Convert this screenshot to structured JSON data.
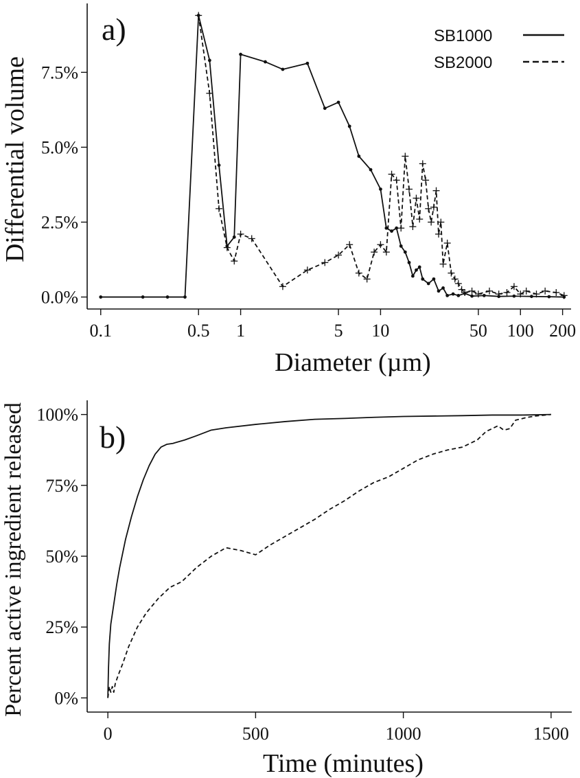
{
  "chart_data": [
    {
      "type": "line",
      "panel_label": "a)",
      "xlabel": "Diameter (µm)",
      "ylabel": "Differential volume",
      "x_scale": "log",
      "xlim": [
        0.08,
        230
      ],
      "ylim": [
        -0.4,
        9.8
      ],
      "x_ticks": [
        0.1,
        0.5,
        1,
        5,
        10,
        50,
        100,
        200
      ],
      "x_tick_labels": [
        "0.1",
        "0.5",
        "1",
        "5",
        "10",
        "50",
        "100",
        "200"
      ],
      "y_ticks": [
        0,
        2.5,
        5,
        7.5
      ],
      "y_tick_labels": [
        "0.0%",
        "2.5%",
        "5.0%",
        "7.5%"
      ],
      "legend_placement": "top-right",
      "grid": false,
      "series": [
        {
          "name": "SB1000",
          "line_style": "solid",
          "marker": "dot",
          "points": [
            [
              0.1,
              0
            ],
            [
              0.2,
              0
            ],
            [
              0.3,
              0
            ],
            [
              0.4,
              0
            ],
            [
              0.5,
              9.4
            ],
            [
              0.6,
              7.9
            ],
            [
              0.7,
              4.4
            ],
            [
              0.8,
              1.7
            ],
            [
              0.9,
              2.0
            ],
            [
              1.0,
              8.1
            ],
            [
              1.5,
              7.85
            ],
            [
              2.0,
              7.6
            ],
            [
              3.0,
              7.8
            ],
            [
              4.0,
              6.3
            ],
            [
              5.0,
              6.5
            ],
            [
              6.0,
              5.7
            ],
            [
              7.0,
              4.7
            ],
            [
              8.5,
              4.25
            ],
            [
              10.0,
              3.6
            ],
            [
              11,
              2.3
            ],
            [
              12,
              2.2
            ],
            [
              13,
              2.3
            ],
            [
              14,
              1.7
            ],
            [
              15,
              1.5
            ],
            [
              16,
              1.15
            ],
            [
              17,
              0.7
            ],
            [
              18,
              0.9
            ],
            [
              19,
              1.0
            ],
            [
              20,
              0.6
            ],
            [
              22,
              0.45
            ],
            [
              24,
              0.6
            ],
            [
              26,
              0.2
            ],
            [
              28,
              0.3
            ],
            [
              30,
              0.05
            ],
            [
              33,
              0.1
            ],
            [
              36,
              0.05
            ],
            [
              40,
              0.12
            ],
            [
              45,
              0.03
            ],
            [
              55,
              0.05
            ],
            [
              70,
              0.02
            ],
            [
              90,
              0.03
            ],
            [
              120,
              0.02
            ],
            [
              160,
              0.01
            ],
            [
              205,
              0
            ]
          ]
        },
        {
          "name": "SB2000",
          "line_style": "dashed",
          "marker": "cross",
          "points": [
            [
              0.5,
              9.4
            ],
            [
              0.6,
              6.8
            ],
            [
              0.7,
              2.95
            ],
            [
              0.8,
              1.65
            ],
            [
              0.9,
              1.2
            ],
            [
              1.0,
              2.1
            ],
            [
              1.2,
              1.95
            ],
            [
              2.0,
              0.35
            ],
            [
              3.0,
              0.9
            ],
            [
              4.0,
              1.15
            ],
            [
              5.0,
              1.4
            ],
            [
              6.0,
              1.75
            ],
            [
              7.0,
              0.8
            ],
            [
              8.0,
              0.6
            ],
            [
              9.0,
              1.5
            ],
            [
              10.0,
              1.75
            ],
            [
              11,
              1.5
            ],
            [
              12,
              4.1
            ],
            [
              13,
              3.9
            ],
            [
              14,
              2.3
            ],
            [
              15,
              4.7
            ],
            [
              16,
              3.6
            ],
            [
              17,
              2.35
            ],
            [
              18,
              3.3
            ],
            [
              19,
              2.6
            ],
            [
              20,
              4.45
            ],
            [
              21,
              3.9
            ],
            [
              22,
              2.95
            ],
            [
              23,
              2.5
            ],
            [
              24,
              3.0
            ],
            [
              25,
              3.55
            ],
            [
              26,
              2.1
            ],
            [
              27,
              2.5
            ],
            [
              28,
              1.1
            ],
            [
              30,
              1.8
            ],
            [
              32,
              0.8
            ],
            [
              34,
              0.6
            ],
            [
              36,
              0.45
            ],
            [
              38,
              0.25
            ],
            [
              40,
              0.15
            ],
            [
              45,
              0.2
            ],
            [
              50,
              0.1
            ],
            [
              60,
              0.2
            ],
            [
              70,
              0.1
            ],
            [
              80,
              0.15
            ],
            [
              90,
              0.35
            ],
            [
              100,
              0.1
            ],
            [
              110,
              0.2
            ],
            [
              130,
              0.1
            ],
            [
              150,
              0.2
            ],
            [
              180,
              0.15
            ],
            [
              205,
              0.05
            ]
          ]
        }
      ]
    },
    {
      "type": "line",
      "panel_label": "b)",
      "xlabel": "Time (minutes)",
      "ylabel": "Percent active ingredient  released",
      "xlim": [
        -70,
        1570
      ],
      "ylim": [
        -5,
        105
      ],
      "x_ticks": [
        0,
        500,
        1000,
        1500
      ],
      "x_tick_labels": [
        "0",
        "500",
        "1000",
        "1500"
      ],
      "y_ticks": [
        0,
        25,
        50,
        75,
        100
      ],
      "y_tick_labels": [
        "0%",
        "25%",
        "50%",
        "75%",
        "100%"
      ],
      "grid": false,
      "series": [
        {
          "name": "SB1000",
          "line_style": "solid",
          "points": [
            [
              0,
              0
            ],
            [
              2,
              10
            ],
            [
              5,
              19
            ],
            [
              10,
              26
            ],
            [
              20,
              33
            ],
            [
              30,
              40
            ],
            [
              40,
              46
            ],
            [
              60,
              56
            ],
            [
              80,
              64
            ],
            [
              100,
              71
            ],
            [
              120,
              77
            ],
            [
              140,
              82
            ],
            [
              160,
              86
            ],
            [
              180,
              88.5
            ],
            [
              200,
              89.5
            ],
            [
              220,
              89.8
            ],
            [
              260,
              91
            ],
            [
              300,
              92.5
            ],
            [
              350,
              94.5
            ],
            [
              400,
              95.3
            ],
            [
              500,
              96.5
            ],
            [
              600,
              97.5
            ],
            [
              700,
              98.3
            ],
            [
              800,
              98.6
            ],
            [
              900,
              99
            ],
            [
              1000,
              99.3
            ],
            [
              1200,
              99.6
            ],
            [
              1300,
              99.8
            ],
            [
              1400,
              99.8
            ],
            [
              1500,
              100
            ]
          ]
        },
        {
          "name": "SB2000",
          "line_style": "dashed",
          "points": [
            [
              0,
              0
            ],
            [
              5,
              4
            ],
            [
              10,
              2
            ],
            [
              15,
              4
            ],
            [
              20,
              2
            ],
            [
              25,
              5
            ],
            [
              35,
              8
            ],
            [
              50,
              12
            ],
            [
              70,
              18
            ],
            [
              100,
              25
            ],
            [
              130,
              30
            ],
            [
              170,
              35
            ],
            [
              210,
              39
            ],
            [
              250,
              41
            ],
            [
              300,
              46
            ],
            [
              350,
              50
            ],
            [
              400,
              53
            ],
            [
              450,
              52
            ],
            [
              500,
              50.5
            ],
            [
              550,
              54
            ],
            [
              600,
              57
            ],
            [
              650,
              60
            ],
            [
              700,
              63
            ],
            [
              750,
              66.5
            ],
            [
              800,
              69.5
            ],
            [
              850,
              73
            ],
            [
              900,
              76
            ],
            [
              950,
              78
            ],
            [
              1000,
              81
            ],
            [
              1050,
              84
            ],
            [
              1100,
              86
            ],
            [
              1150,
              87.5
            ],
            [
              1200,
              88.5
            ],
            [
              1250,
              91
            ],
            [
              1280,
              94
            ],
            [
              1320,
              96
            ],
            [
              1340,
              94.5
            ],
            [
              1360,
              95
            ],
            [
              1380,
              98
            ],
            [
              1420,
              99
            ],
            [
              1450,
              99.5
            ],
            [
              1500,
              100
            ]
          ]
        }
      ]
    }
  ]
}
